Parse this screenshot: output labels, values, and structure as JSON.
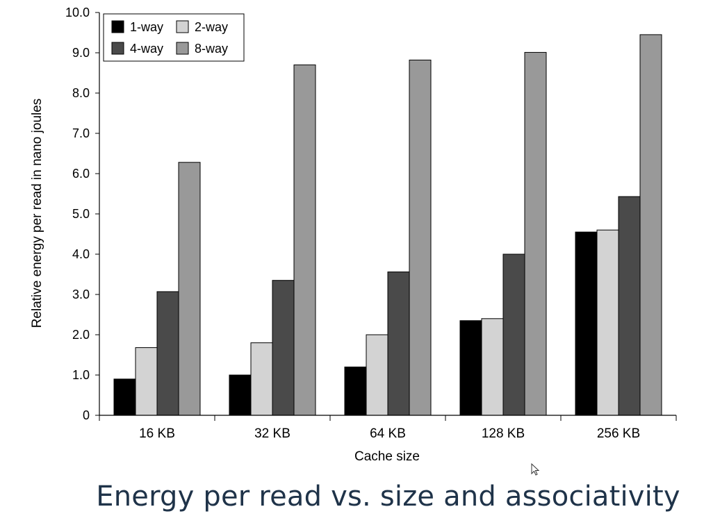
{
  "caption": "Energy per read vs. size and associativity",
  "chart_data": {
    "type": "bar",
    "title": "",
    "xlabel": "Cache size",
    "ylabel": "Relative energy per read in nano joules",
    "categories": [
      "16 KB",
      "32 KB",
      "64 KB",
      "128 KB",
      "256 KB"
    ],
    "ylim": [
      0,
      10
    ],
    "yticks": [
      "0",
      "1.0",
      "2.0",
      "3.0",
      "4.0",
      "5.0",
      "6.0",
      "7.0",
      "8.0",
      "9.0",
      "10.0"
    ],
    "grid": false,
    "legend": "top-left",
    "series": [
      {
        "name": "1-way",
        "color": "#000000",
        "values": [
          0.9,
          1.0,
          1.2,
          2.35,
          4.55
        ]
      },
      {
        "name": "2-way",
        "color": "#d3d3d3",
        "values": [
          1.68,
          1.8,
          2.0,
          2.4,
          4.6
        ]
      },
      {
        "name": "4-way",
        "color": "#4a4a4a",
        "values": [
          3.07,
          3.35,
          3.56,
          4.0,
          5.43
        ]
      },
      {
        "name": "8-way",
        "color": "#999999",
        "values": [
          6.28,
          8.7,
          8.82,
          9.01,
          9.45
        ]
      }
    ]
  }
}
